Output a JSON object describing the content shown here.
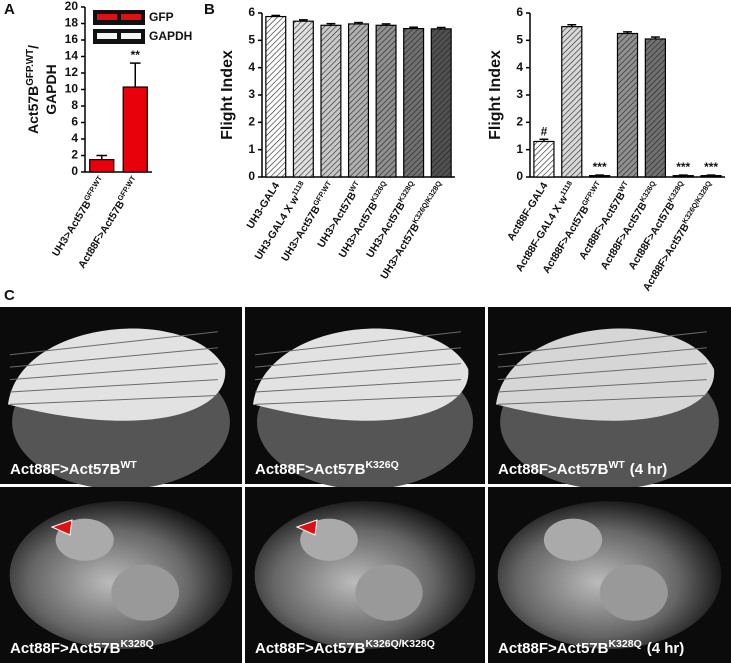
{
  "panel_labels": [
    "A",
    "B",
    "C"
  ],
  "chart_data": [
    {
      "type": "bar",
      "ylabel": "Act57B",
      "ylabel_superscript": "GFP.WT",
      "ylabel_suffix": "/",
      "ylabel_line2": "GAPDH",
      "inset_labels": [
        "GFP",
        "GAPDH"
      ],
      "categories": [
        "UH3>Act57B",
        "Act88F>Act57B"
      ],
      "category_superscripts": [
        "GFP.WT",
        "GFP.WT"
      ],
      "values": [
        1.5,
        10.3
      ],
      "errors": [
        0.5,
        2.9
      ],
      "value_annotations": [
        null,
        "**"
      ],
      "colors": [
        "#e8000b",
        "#e8000b"
      ],
      "hatch": false,
      "ylim": [
        0,
        20
      ],
      "yticks": [
        0,
        2,
        4,
        6,
        8,
        10,
        12,
        14,
        16,
        18,
        20
      ]
    },
    {
      "type": "bar",
      "ylabel": "Flight Index",
      "categories": [
        "UH3-GAL4",
        "UH3-GAL4 X w",
        "UH3>Act57B",
        "UH3>Act57B",
        "UH3>Act57B",
        "UH3>Act57B",
        "UH3>Act57B"
      ],
      "category_superscripts": [
        null,
        "1118",
        "GFP.WT",
        "WT",
        "K326Q",
        "K328Q",
        "K326Q/K328Q"
      ],
      "values": [
        5.87,
        5.7,
        5.55,
        5.6,
        5.55,
        5.43,
        5.42
      ],
      "errors": [
        0.04,
        0.05,
        0.06,
        0.05,
        0.05,
        0.05,
        0.05
      ],
      "colors": [
        "#ffffff",
        "#e0e0e0",
        "#c8c8c8",
        "#b0b0b0",
        "#909090",
        "#707070",
        "#505050"
      ],
      "hatch": true,
      "ylim": [
        0,
        6
      ],
      "yticks": [
        0,
        1,
        2,
        3,
        4,
        5,
        6
      ]
    },
    {
      "type": "bar",
      "ylabel": "Flight Index",
      "categories": [
        "Act88F-GAL4",
        "Act88F-GAL4 X w",
        "Act88F>Act57B",
        "Act88F>Act57B",
        "Act88F>Act57B",
        "Act88F>Act57B",
        "Act88F>Act57B"
      ],
      "category_superscripts": [
        null,
        "1118",
        "GFP.WT",
        "WT",
        "K326Q",
        "K328Q",
        "K326Q/K328Q"
      ],
      "values": [
        1.3,
        5.5,
        0.05,
        5.25,
        5.05,
        0.05,
        0.05
      ],
      "errors": [
        0.08,
        0.07,
        0.02,
        0.06,
        0.07,
        0.02,
        0.02
      ],
      "value_annotations": [
        "#",
        null,
        "***",
        null,
        null,
        "***",
        "***"
      ],
      "colors": [
        "#ffffff",
        "#d8d8d8",
        "#000000",
        "#909090",
        "#707070",
        "#000000",
        "#000000"
      ],
      "hatch": true,
      "ylim": [
        0,
        6
      ],
      "yticks": [
        0,
        1,
        2,
        3,
        4,
        5,
        6
      ]
    }
  ],
  "images": [
    {
      "caption": "Act88F>Act57B",
      "superscript": "WT",
      "suffix": null
    },
    {
      "caption": "Act88F>Act57B",
      "superscript": "K326Q",
      "suffix": null
    },
    {
      "caption": "Act88F>Act57B",
      "superscript": "WT",
      "suffix": "(4 hr)"
    },
    {
      "caption": "Act88F>Act57B",
      "superscript": "K328Q",
      "suffix": null
    },
    {
      "caption": "Act88F>Act57B",
      "superscript": "K326Q/K328Q",
      "suffix": null
    },
    {
      "caption": "Act88F>Act57B",
      "superscript": "K328Q",
      "suffix": "(4 hr)"
    }
  ]
}
